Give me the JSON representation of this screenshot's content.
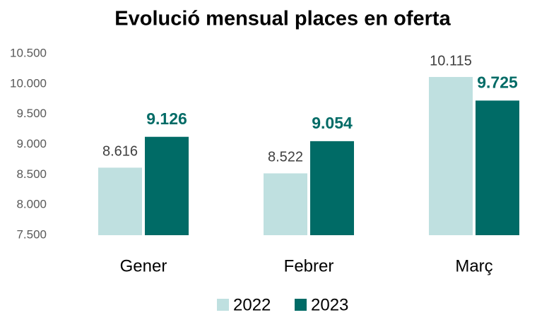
{
  "chart_data": {
    "type": "bar",
    "title": "Evolució mensual places en oferta",
    "categories": [
      "Gener",
      "Febrer",
      "Març"
    ],
    "series": [
      {
        "name": "2022",
        "color": "#bfe0e0",
        "values": [
          8616,
          8522,
          10115
        ],
        "value_labels": [
          "8.616",
          "8.522",
          "10.115"
        ]
      },
      {
        "name": "2023",
        "color": "#006b66",
        "values": [
          9126,
          9054,
          9725
        ],
        "value_labels": [
          "9.126",
          "9.054",
          "9.725"
        ]
      }
    ],
    "ylim": [
      7500,
      10500
    ],
    "yticks": [
      {
        "value": 7500,
        "label": "7.500"
      },
      {
        "value": 8000,
        "label": "8.000"
      },
      {
        "value": 8500,
        "label": "8.500"
      },
      {
        "value": 9000,
        "label": "9.000"
      },
      {
        "value": 9500,
        "label": "9.500"
      },
      {
        "value": 10000,
        "label": "10.000"
      },
      {
        "value": 10500,
        "label": "10.500"
      }
    ],
    "grid": false,
    "legend": "bottom"
  }
}
